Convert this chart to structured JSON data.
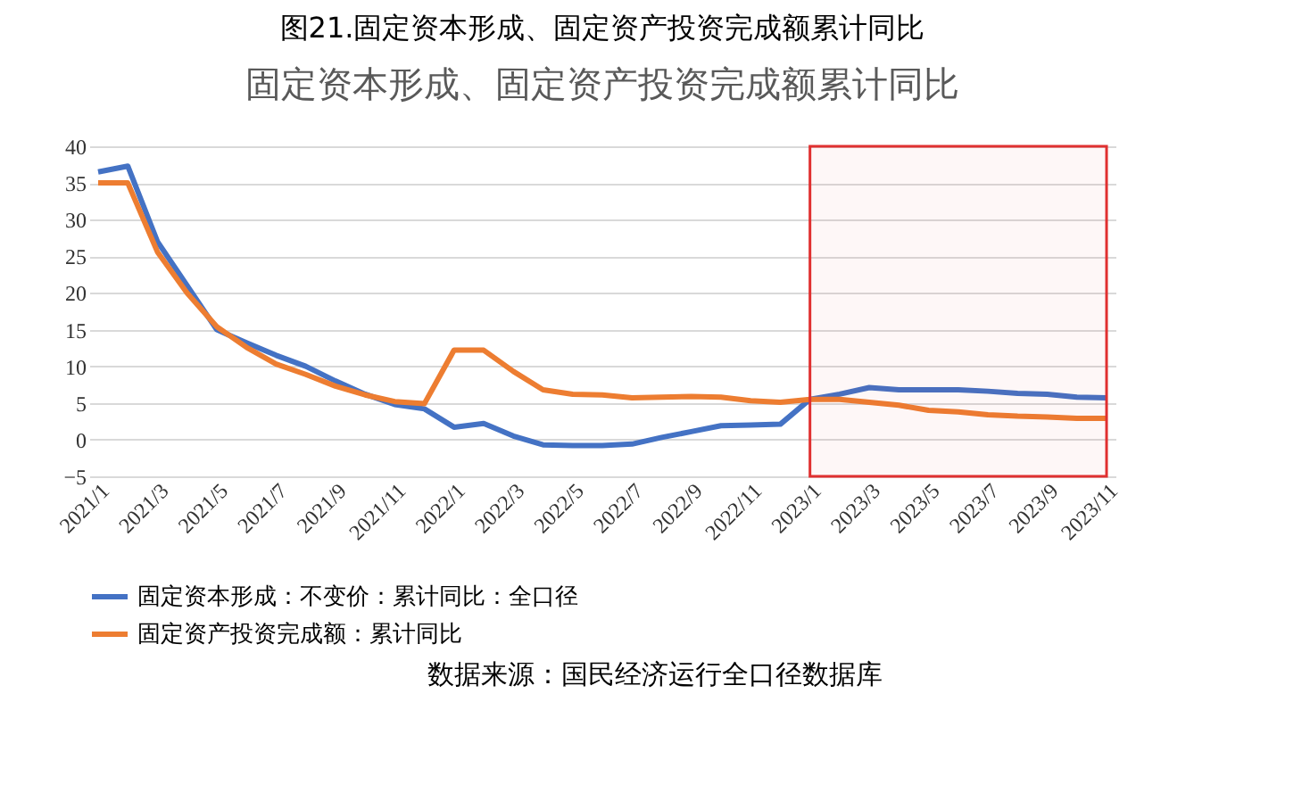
{
  "chart_data": {
    "type": "line",
    "title": "图21.固定资本形成、固定资产投资完成额累计同比",
    "subtitle": "固定资本形成、固定资产投资完成额累计同比",
    "categories": [
      "2021/1",
      null,
      "2021/3",
      null,
      "2021/5",
      null,
      "2021/7",
      null,
      "2021/9",
      null,
      "2021/11",
      null,
      "2022/1",
      null,
      "2022/3",
      null,
      "2022/5",
      null,
      "2022/7",
      null,
      "2022/9",
      null,
      "2022/11",
      null,
      "2023/1",
      null,
      "2023/3",
      null,
      "2023/5",
      null,
      "2023/7",
      null,
      "2023/9",
      null,
      "2023/11"
    ],
    "series": [
      {
        "name": "固定资本形成：不变价：累计同比：全口径",
        "color": "#4472c4",
        "values": [
          36.5,
          37.3,
          27,
          21,
          15,
          13.2,
          11.5,
          10,
          8,
          6.2,
          4.8,
          4.2,
          1.7,
          2.2,
          0.5,
          -0.7,
          -0.8,
          -0.8,
          -0.6,
          0.3,
          1.1,
          1.9,
          2,
          2.1,
          5.5,
          6.2,
          7.1,
          6.8,
          6.8,
          6.8,
          6.6,
          6.3,
          6.2,
          5.8,
          5.7
        ]
      },
      {
        "name": "固定资产投资完成额：累计同比",
        "color": "#ed7d31",
        "values": [
          35,
          35,
          25.6,
          20,
          15.4,
          12.6,
          10.3,
          8.9,
          7.3,
          6.1,
          5.2,
          4.9,
          12.2,
          12.2,
          9.3,
          6.8,
          6.2,
          6.1,
          5.7,
          5.8,
          5.9,
          5.8,
          5.3,
          5.1,
          5.5,
          5.5,
          5.1,
          4.7,
          4,
          3.8,
          3.4,
          3.2,
          3.1,
          2.9,
          2.9
        ]
      }
    ],
    "ylim": [
      -5,
      40
    ],
    "yticks": [
      -5,
      0,
      5,
      10,
      15,
      20,
      25,
      30,
      35,
      40
    ],
    "grid": "y",
    "legend": "bottom",
    "bands": [
      {
        "axis": "x",
        "from": "2023/1",
        "to": "2023/11",
        "color": "#e03030"
      }
    ],
    "annotations": [
      "数据来源：国民经济运行全口径数据库"
    ]
  }
}
